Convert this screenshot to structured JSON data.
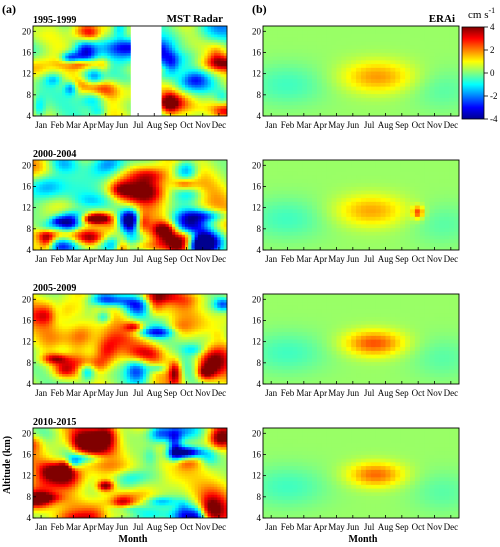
{
  "panel_labels": {
    "a": "(a)",
    "b": "(b)"
  },
  "source_labels": {
    "left": "MST Radar",
    "right": "ERAi"
  },
  "colorbar": {
    "unit": "cm s",
    "unit_exp": "-1",
    "ticks": [
      "4",
      "2",
      "0",
      "-2",
      "-4"
    ],
    "colors": [
      "#00008f",
      "#0000ff",
      "#0080ff",
      "#00ffff",
      "#80ff80",
      "#ffff00",
      "#ff8000",
      "#ff0000",
      "#800000"
    ]
  },
  "axes": {
    "ylabel": "Altitude (km)",
    "xlabel": "Month",
    "months": [
      "Jan",
      "Feb",
      "Mar",
      "Apr",
      "May",
      "Jun",
      "Jul",
      "Aug",
      "Sep",
      "Oct",
      "Nov",
      "Dec"
    ],
    "yticks": [
      "20",
      "16",
      "12",
      "8",
      "4"
    ]
  },
  "chart_data": [
    {
      "type": "heatmap",
      "source": "MST Radar",
      "title": "1995-1999",
      "x": "month",
      "y": "altitude_km",
      "ylim": [
        4,
        21
      ],
      "zlim": [
        -4,
        4
      ],
      "missing": "Jul-Aug"
    },
    {
      "type": "heatmap",
      "source": "MST Radar",
      "title": "2000-2004",
      "x": "month",
      "y": "altitude_km",
      "ylim": [
        4,
        21
      ],
      "zlim": [
        -4,
        4
      ]
    },
    {
      "type": "heatmap",
      "source": "MST Radar",
      "title": "2005-2009",
      "x": "month",
      "y": "altitude_km",
      "ylim": [
        4,
        21
      ],
      "zlim": [
        -4,
        4
      ]
    },
    {
      "type": "heatmap",
      "source": "MST Radar",
      "title": "2010-2015",
      "x": "month",
      "y": "altitude_km",
      "ylim": [
        4,
        21
      ],
      "zlim": [
        -4,
        4
      ]
    },
    {
      "type": "heatmap",
      "source": "ERAi",
      "x": "month",
      "y": "altitude_km",
      "ylim": [
        4,
        21
      ],
      "zlim": [
        -4,
        4
      ]
    },
    {
      "type": "heatmap",
      "source": "ERAi",
      "x": "month",
      "y": "altitude_km",
      "ylim": [
        4,
        21
      ],
      "zlim": [
        -4,
        4
      ]
    },
    {
      "type": "heatmap",
      "source": "ERAi",
      "x": "month",
      "y": "altitude_km",
      "ylim": [
        4,
        21
      ],
      "zlim": [
        -4,
        4
      ]
    },
    {
      "type": "heatmap",
      "source": "ERAi",
      "x": "month",
      "y": "altitude_km",
      "ylim": [
        4,
        21
      ],
      "zlim": [
        -4,
        4
      ]
    }
  ]
}
